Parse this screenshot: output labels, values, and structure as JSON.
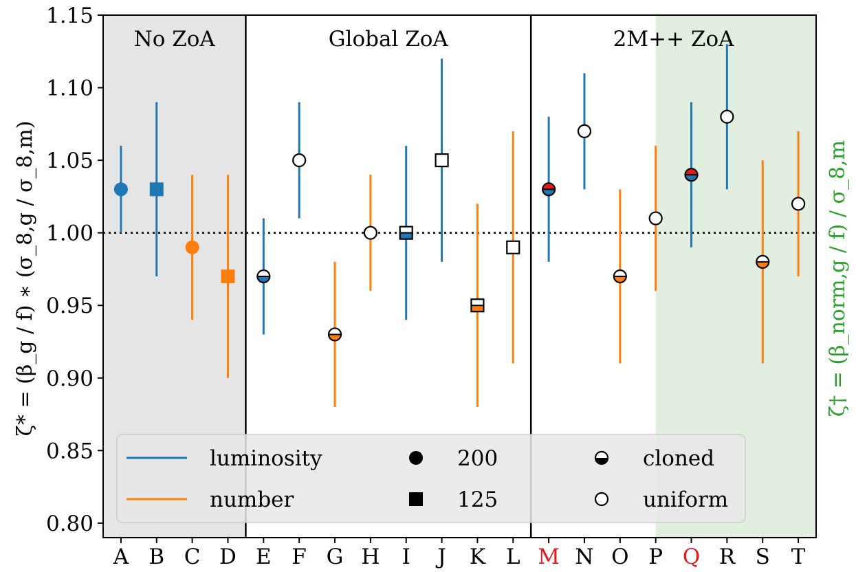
{
  "chart_data": {
    "type": "scatter",
    "ylabel": "ζ* = (β_g / f) ∗ (σ_8,g / σ_8,m)",
    "ylabel_right": "ζ† = (β_norm,g / f) / σ_8,m",
    "ylim": [
      0.79,
      1.15
    ],
    "yticks": [
      "0.80",
      "0.85",
      "0.90",
      "0.95",
      "1.00",
      "1.05",
      "1.10",
      "1.15"
    ],
    "ytick_values": [
      0.8,
      0.85,
      0.9,
      0.95,
      1.0,
      1.05,
      1.1,
      1.15
    ],
    "reference_line": 1.0,
    "categories": [
      "A",
      "B",
      "C",
      "D",
      "E",
      "F",
      "G",
      "H",
      "I",
      "J",
      "K",
      "L",
      "M",
      "N",
      "O",
      "P",
      "Q",
      "R",
      "S",
      "T"
    ],
    "highlight_categories": [
      "M",
      "Q"
    ],
    "regions": [
      {
        "label": "No ZoA",
        "from": "A",
        "to": "D",
        "shade": "#e5e5e5"
      },
      {
        "label": "Global ZoA",
        "from": "E",
        "to": "L",
        "shade": "#ffffff"
      },
      {
        "label": "2M++ ZoA",
        "from": "M",
        "to": "T",
        "shade": "#ffffff"
      }
    ],
    "green_band": {
      "from": "Q",
      "to": "T",
      "color": "#e2efe0"
    },
    "points": [
      {
        "x": "A",
        "y": 1.03,
        "low": 1.0,
        "high": 1.06,
        "weight": "luminosity",
        "marker": "circle",
        "fill": "solid"
      },
      {
        "x": "B",
        "y": 1.03,
        "low": 0.97,
        "high": 1.09,
        "weight": "luminosity",
        "marker": "square",
        "fill": "solid"
      },
      {
        "x": "C",
        "y": 0.99,
        "low": 0.94,
        "high": 1.04,
        "weight": "number",
        "marker": "circle",
        "fill": "solid"
      },
      {
        "x": "D",
        "y": 0.97,
        "low": 0.9,
        "high": 1.04,
        "weight": "number",
        "marker": "square",
        "fill": "solid"
      },
      {
        "x": "E",
        "y": 0.97,
        "low": 0.93,
        "high": 1.01,
        "weight": "luminosity",
        "marker": "circle",
        "fill": "cloned"
      },
      {
        "x": "F",
        "y": 1.05,
        "low": 1.01,
        "high": 1.09,
        "weight": "luminosity",
        "marker": "circle",
        "fill": "uniform"
      },
      {
        "x": "G",
        "y": 0.93,
        "low": 0.88,
        "high": 0.98,
        "weight": "number",
        "marker": "circle",
        "fill": "cloned"
      },
      {
        "x": "H",
        "y": 1.0,
        "low": 0.96,
        "high": 1.04,
        "weight": "number",
        "marker": "circle",
        "fill": "uniform"
      },
      {
        "x": "I",
        "y": 1.0,
        "low": 0.94,
        "high": 1.06,
        "weight": "luminosity",
        "marker": "square",
        "fill": "cloned"
      },
      {
        "x": "J",
        "y": 1.05,
        "low": 0.98,
        "high": 1.12,
        "weight": "luminosity",
        "marker": "square",
        "fill": "uniform"
      },
      {
        "x": "K",
        "y": 0.95,
        "low": 0.88,
        "high": 1.02,
        "weight": "number",
        "marker": "square",
        "fill": "cloned"
      },
      {
        "x": "L",
        "y": 0.99,
        "low": 0.91,
        "high": 1.07,
        "weight": "number",
        "marker": "square",
        "fill": "uniform"
      },
      {
        "x": "M",
        "y": 1.03,
        "low": 0.98,
        "high": 1.08,
        "weight": "luminosity",
        "marker": "circle",
        "fill": "cloned-red"
      },
      {
        "x": "N",
        "y": 1.07,
        "low": 1.03,
        "high": 1.11,
        "weight": "luminosity",
        "marker": "circle",
        "fill": "uniform"
      },
      {
        "x": "O",
        "y": 0.97,
        "low": 0.91,
        "high": 1.03,
        "weight": "number",
        "marker": "circle",
        "fill": "cloned"
      },
      {
        "x": "P",
        "y": 1.01,
        "low": 0.96,
        "high": 1.06,
        "weight": "number",
        "marker": "circle",
        "fill": "uniform"
      },
      {
        "x": "Q",
        "y": 1.04,
        "low": 0.99,
        "high": 1.09,
        "weight": "luminosity",
        "marker": "circle",
        "fill": "cloned-red"
      },
      {
        "x": "R",
        "y": 1.08,
        "low": 1.03,
        "high": 1.13,
        "weight": "luminosity",
        "marker": "circle",
        "fill": "uniform"
      },
      {
        "x": "S",
        "y": 0.98,
        "low": 0.91,
        "high": 1.05,
        "weight": "number",
        "marker": "circle",
        "fill": "cloned"
      },
      {
        "x": "T",
        "y": 1.02,
        "low": 0.97,
        "high": 1.07,
        "weight": "number",
        "marker": "circle",
        "fill": "uniform"
      }
    ],
    "colors": {
      "luminosity": "#1f77b4",
      "number": "#ff7f0e",
      "highlight": "#e41a1c",
      "right_label": "#2ca02c"
    },
    "legend": {
      "placement": "bottom",
      "entries": [
        {
          "label": "luminosity",
          "kind": "line",
          "weight": "luminosity"
        },
        {
          "label": "200",
          "kind": "marker",
          "marker": "circle"
        },
        {
          "label": "cloned",
          "kind": "marker",
          "marker": "half-circle"
        },
        {
          "label": "number",
          "kind": "line",
          "weight": "number"
        },
        {
          "label": "125",
          "kind": "marker",
          "marker": "square"
        },
        {
          "label": "uniform",
          "kind": "marker",
          "marker": "open-circle"
        }
      ]
    }
  }
}
